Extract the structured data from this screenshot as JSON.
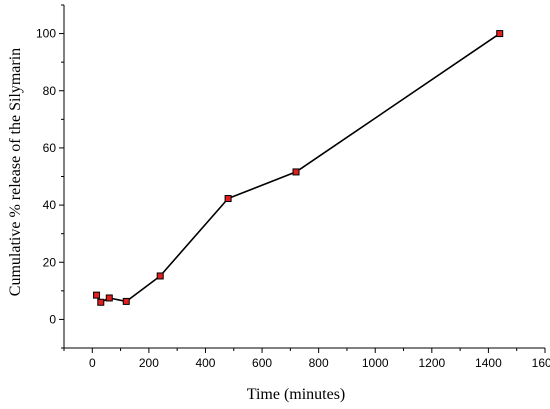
{
  "chart_data": {
    "type": "line",
    "title": "",
    "xlabel": "Time (minutes)",
    "ylabel": "Cumulative % release of the Silymarin",
    "xlim": [
      -100,
      1600
    ],
    "ylim": [
      -10,
      110
    ],
    "xticks": [
      0,
      200,
      400,
      600,
      800,
      1000,
      1200,
      1400,
      1600
    ],
    "yticks": [
      0,
      20,
      40,
      60,
      80,
      100
    ],
    "grid": false,
    "legend": "none",
    "series": [
      {
        "x": [
          15,
          30,
          60,
          120,
          240,
          480,
          720,
          1440
        ],
        "y": [
          8.5,
          6,
          7.5,
          6.3,
          15.2,
          42.3,
          51.6,
          100.0
        ],
        "line_color": "#000000",
        "marker": "square",
        "marker_fill": "#e02020",
        "marker_edge": "#000000"
      }
    ]
  }
}
